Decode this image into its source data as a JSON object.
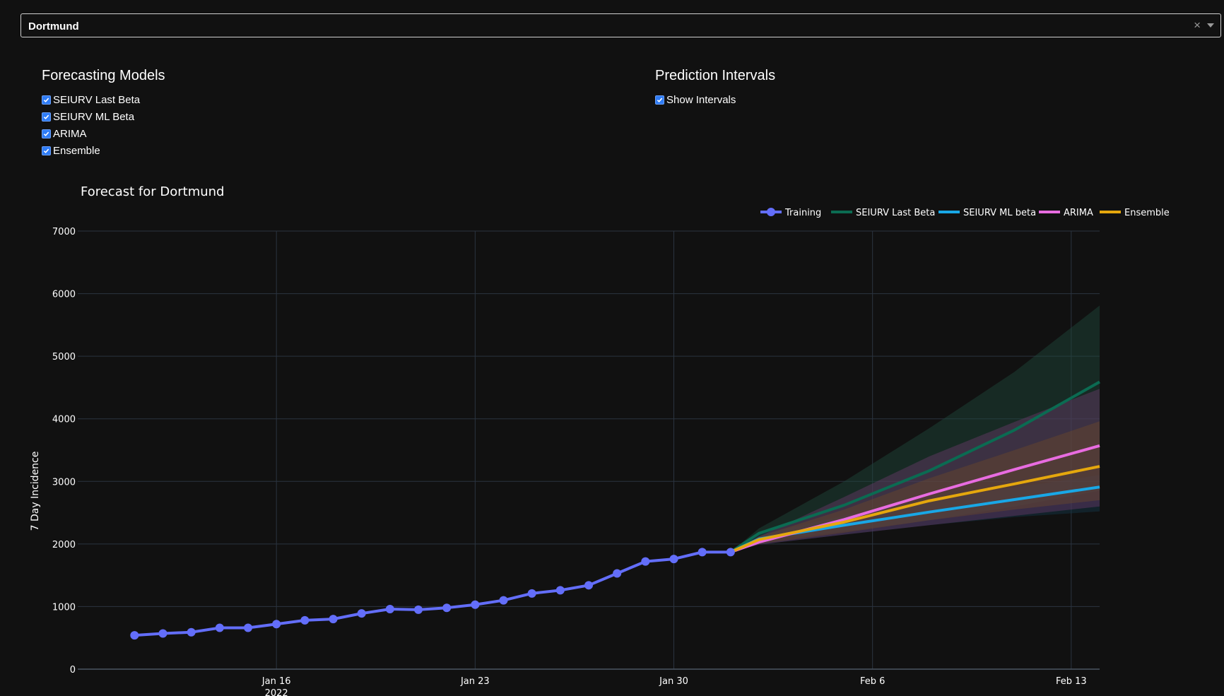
{
  "dropdown": {
    "value": "Dortmund"
  },
  "models_panel": {
    "title": "Forecasting Models",
    "options": [
      {
        "label": "SEIURV Last Beta",
        "checked": true
      },
      {
        "label": "SEIURV ML Beta",
        "checked": true
      },
      {
        "label": "ARIMA",
        "checked": true
      },
      {
        "label": "Ensemble",
        "checked": true
      }
    ]
  },
  "intervals_panel": {
    "title": "Prediction Intervals",
    "options": [
      {
        "label": "Show Intervals",
        "checked": true
      }
    ]
  },
  "chart_data": {
    "type": "line",
    "title": "Forecast for Dortmund",
    "ylabel": "7 Day Incidence",
    "xlabel": "",
    "ylim": [
      0,
      7000
    ],
    "yticks": [
      0,
      1000,
      2000,
      3000,
      4000,
      5000,
      6000,
      7000
    ],
    "xticks": [
      {
        "date": "2022-01-16",
        "label": "Jan 16",
        "sublabel": "2022"
      },
      {
        "date": "2022-01-23",
        "label": "Jan 23",
        "sublabel": ""
      },
      {
        "date": "2022-01-30",
        "label": "Jan 30",
        "sublabel": ""
      },
      {
        "date": "2022-02-06",
        "label": "Feb 6",
        "sublabel": ""
      },
      {
        "date": "2022-02-13",
        "label": "Feb 13",
        "sublabel": ""
      }
    ],
    "x_range": [
      "2022-01-09",
      "2022-02-14"
    ],
    "grid": true,
    "legend_position": "top-right",
    "training": {
      "name": "Training",
      "color": "#636efa",
      "dates": [
        "2022-01-11",
        "2022-01-12",
        "2022-01-13",
        "2022-01-14",
        "2022-01-15",
        "2022-01-16",
        "2022-01-17",
        "2022-01-18",
        "2022-01-19",
        "2022-01-20",
        "2022-01-21",
        "2022-01-22",
        "2022-01-23",
        "2022-01-24",
        "2022-01-25",
        "2022-01-26",
        "2022-01-27",
        "2022-01-28",
        "2022-01-29",
        "2022-01-30",
        "2022-01-31",
        "2022-02-01"
      ],
      "values": [
        540,
        570,
        590,
        660,
        660,
        720,
        780,
        800,
        890,
        960,
        950,
        980,
        1030,
        1100,
        1210,
        1260,
        1340,
        1530,
        1720,
        1760,
        1870,
        1870
      ]
    },
    "forecast_dates": [
      "2022-02-01",
      "2022-02-02",
      "2022-02-05",
      "2022-02-08",
      "2022-02-11",
      "2022-02-14"
    ],
    "series": [
      {
        "name": "SEIURV Last Beta",
        "color": "#0b6b52",
        "band_color": "#1f4a3c",
        "values": [
          1870,
          2170,
          2620,
          3170,
          3820,
          4590
        ],
        "lower": [
          1870,
          2050,
          2200,
          2380,
          2600,
          2850
        ],
        "upper": [
          1870,
          2250,
          3000,
          3850,
          4750,
          5810
        ]
      },
      {
        "name": "SEIURV ML beta",
        "color": "#19a7e6",
        "band_color": "#14384a",
        "values": [
          1870,
          2080,
          2300,
          2510,
          2710,
          2910
        ],
        "lower": [
          1870,
          1990,
          2150,
          2300,
          2430,
          2520
        ],
        "upper": [
          1870,
          2150,
          2450,
          2700,
          2900,
          3100
        ]
      },
      {
        "name": "ARIMA",
        "color": "#e86ce0",
        "band_color": "#6a3a6a",
        "values": [
          1870,
          2030,
          2390,
          2800,
          3190,
          3570
        ],
        "lower": [
          1870,
          1990,
          2150,
          2300,
          2450,
          2600
        ],
        "upper": [
          1870,
          2120,
          2750,
          3400,
          3950,
          4480
        ]
      },
      {
        "name": "Ensemble",
        "color": "#e5a70d",
        "band_color": "#6a4a2a",
        "values": [
          1870,
          2070,
          2350,
          2690,
          2960,
          3240
        ],
        "lower": [
          1870,
          2000,
          2180,
          2380,
          2550,
          2700
        ],
        "upper": [
          1870,
          2120,
          2550,
          3050,
          3500,
          3960
        ]
      }
    ]
  }
}
